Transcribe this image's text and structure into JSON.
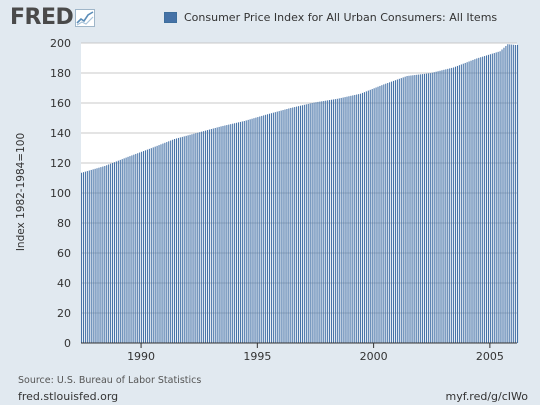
{
  "header": {
    "logo_text": "FRED",
    "logo_icon": "chart-line-icon",
    "legend_label": "Consumer Price Index for All Urban Consumers: All Items"
  },
  "footer": {
    "source": "Source: U.S. Bureau of Labor Statistics",
    "site": "fred.stlouisfed.org",
    "short_url": "myf.red/g/cIWo"
  },
  "colors": {
    "background": "#e1e9f0",
    "plot_bg": "#ffffff",
    "bar": "#4572a7",
    "gridline": "#c8c8c8"
  },
  "chart_data": {
    "type": "bar",
    "title": "",
    "xlabel": "",
    "ylabel": "Index 1982-1984=100",
    "series": [
      {
        "name": "Consumer Price Index for All Urban Consumers: All Items",
        "points": [
          [
            "1987-06",
            113.5
          ],
          [
            "1988-06",
            118.0
          ],
          [
            "1989-06",
            124.1
          ],
          [
            "1990-06",
            129.9
          ],
          [
            "1991-06",
            136.0
          ],
          [
            "1992-06",
            140.2
          ],
          [
            "1993-06",
            144.4
          ],
          [
            "1994-06",
            148.0
          ],
          [
            "1995-06",
            152.5
          ],
          [
            "1996-06",
            156.7
          ],
          [
            "1997-06",
            160.3
          ],
          [
            "1998-06",
            162.8
          ],
          [
            "1999-06",
            166.2
          ],
          [
            "2000-06",
            172.4
          ],
          [
            "2001-06",
            178.0
          ],
          [
            "2002-06",
            179.9
          ],
          [
            "2003-06",
            183.7
          ],
          [
            "2004-06",
            189.7
          ],
          [
            "2005-06",
            194.5
          ],
          [
            "2005-10",
            199.2
          ],
          [
            "2006-02",
            198.7
          ]
        ]
      }
    ],
    "x_range": [
      "1987-06",
      "2006-03"
    ],
    "xticks": [
      "1990",
      "1995",
      "2000",
      "2005"
    ],
    "ylim": [
      0,
      200
    ],
    "yticks": [
      0,
      20,
      40,
      60,
      80,
      100,
      120,
      140,
      160,
      180,
      200
    ],
    "grid": true,
    "legend": "top"
  }
}
